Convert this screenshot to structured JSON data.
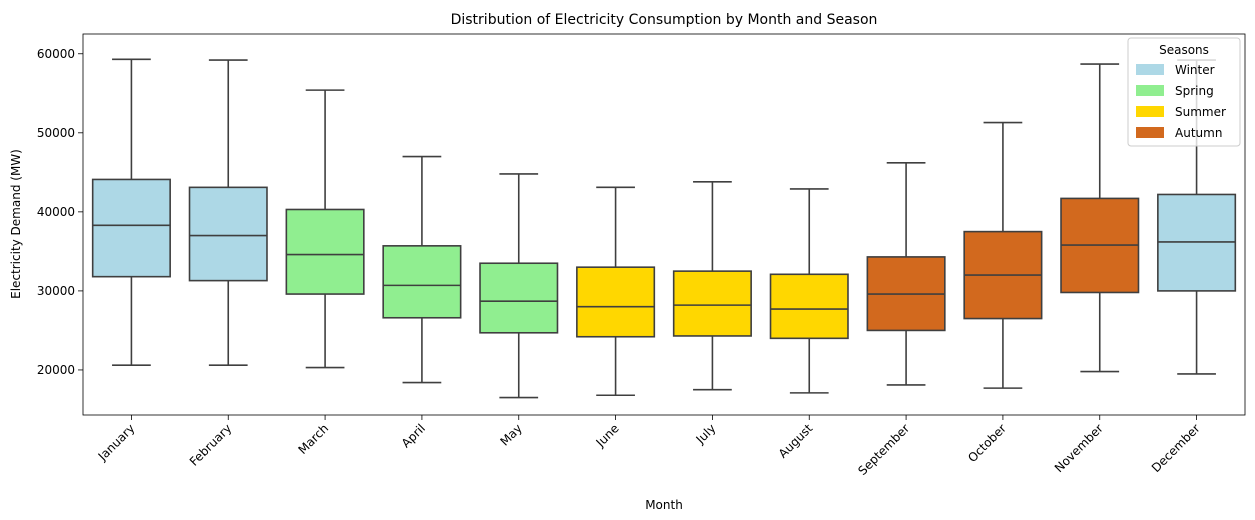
{
  "chart_data": {
    "type": "box",
    "title": "Distribution of Electricity Consumption by Month and Season",
    "xlabel": "Month",
    "ylabel": "Electricity Demand (MW)",
    "ylim": [
      14300,
      62500
    ],
    "yticks": [
      20000,
      30000,
      40000,
      50000,
      60000
    ],
    "grid": false,
    "legend_position": "top-right",
    "legend_title": "Seasons",
    "seasons": [
      {
        "name": "Winter",
        "color": "#ADD8E6"
      },
      {
        "name": "Spring",
        "color": "#90EE90"
      },
      {
        "name": "Summer",
        "color": "#FFD700"
      },
      {
        "name": "Autumn",
        "color": "#D2691E"
      }
    ],
    "categories": [
      "January",
      "February",
      "March",
      "April",
      "May",
      "June",
      "July",
      "August",
      "September",
      "October",
      "November",
      "December"
    ],
    "boxes": [
      {
        "month": "January",
        "season": "Winter",
        "whisker_low": 20600,
        "q1": 31800,
        "median": 38300,
        "q3": 44100,
        "whisker_high": 59300
      },
      {
        "month": "February",
        "season": "Winter",
        "whisker_low": 20600,
        "q1": 31300,
        "median": 37000,
        "q3": 43100,
        "whisker_high": 59200
      },
      {
        "month": "March",
        "season": "Spring",
        "whisker_low": 20300,
        "q1": 29600,
        "median": 34600,
        "q3": 40300,
        "whisker_high": 55400
      },
      {
        "month": "April",
        "season": "Spring",
        "whisker_low": 18400,
        "q1": 26600,
        "median": 30700,
        "q3": 35700,
        "whisker_high": 47000
      },
      {
        "month": "May",
        "season": "Spring",
        "whisker_low": 16500,
        "q1": 24700,
        "median": 28700,
        "q3": 33500,
        "whisker_high": 44800
      },
      {
        "month": "June",
        "season": "Summer",
        "whisker_low": 16800,
        "q1": 24200,
        "median": 28000,
        "q3": 33000,
        "whisker_high": 43100
      },
      {
        "month": "July",
        "season": "Summer",
        "whisker_low": 17500,
        "q1": 24300,
        "median": 28200,
        "q3": 32500,
        "whisker_high": 43800
      },
      {
        "month": "August",
        "season": "Summer",
        "whisker_low": 17100,
        "q1": 24000,
        "median": 27700,
        "q3": 32100,
        "whisker_high": 42900
      },
      {
        "month": "September",
        "season": "Autumn",
        "whisker_low": 18100,
        "q1": 25000,
        "median": 29600,
        "q3": 34300,
        "whisker_high": 46200
      },
      {
        "month": "October",
        "season": "Autumn",
        "whisker_low": 17700,
        "q1": 26500,
        "median": 32000,
        "q3": 37500,
        "whisker_high": 51300
      },
      {
        "month": "November",
        "season": "Autumn",
        "whisker_low": 19800,
        "q1": 29800,
        "median": 35800,
        "q3": 41700,
        "whisker_high": 58700
      },
      {
        "month": "December",
        "season": "Winter",
        "whisker_low": 19500,
        "q1": 30000,
        "median": 36200,
        "q3": 42200,
        "whisker_high": 59200
      }
    ]
  }
}
